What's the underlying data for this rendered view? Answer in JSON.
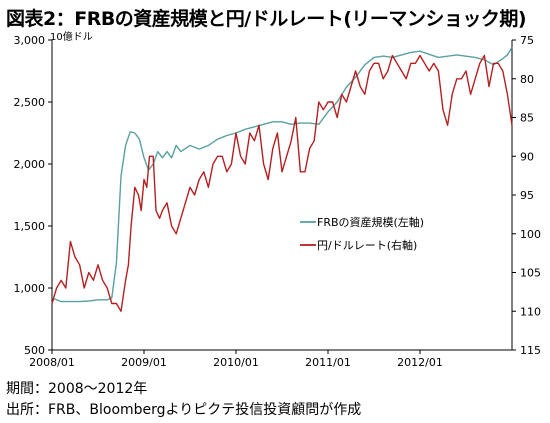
{
  "title": "図表2：FRBの資産規模と円/ドルレート(リーマンショック期)",
  "notes": [
    "期間：2008～2012年",
    "出所：FRB、Bloombergよりピクテ投信投資顧問が作成"
  ],
  "chart_data": {
    "type": "line",
    "left_unit": "10億ドル",
    "x_ticks": [
      "2008/01",
      "2009/01",
      "2010/01",
      "2011/01",
      "2012/01"
    ],
    "x_range": [
      2008.0,
      2013.0
    ],
    "y_left": {
      "ticks": [
        "500",
        "1,000",
        "1,500",
        "2,000",
        "2,500",
        "3,000"
      ],
      "range": [
        500,
        3000
      ]
    },
    "y_right": {
      "ticks": [
        "75",
        "80",
        "85",
        "90",
        "95",
        "100",
        "105",
        "110",
        "115"
      ],
      "range": [
        75,
        115
      ],
      "inverted": true
    },
    "grid": false,
    "legend_position": "center-right",
    "series": [
      {
        "name": "FRBの資産規模(左軸)",
        "axis": "left",
        "color": "#5aa0a0",
        "x": [
          2008.0,
          2008.1,
          2008.2,
          2008.3,
          2008.4,
          2008.5,
          2008.6,
          2008.65,
          2008.7,
          2008.75,
          2008.8,
          2008.85,
          2008.9,
          2008.95,
          2009.0,
          2009.05,
          2009.1,
          2009.15,
          2009.2,
          2009.25,
          2009.3,
          2009.35,
          2009.4,
          2009.5,
          2009.6,
          2009.7,
          2009.8,
          2009.9,
          2010.0,
          2010.1,
          2010.2,
          2010.3,
          2010.4,
          2010.5,
          2010.6,
          2010.7,
          2010.8,
          2010.9,
          2011.0,
          2011.1,
          2011.2,
          2011.3,
          2011.4,
          2011.5,
          2011.6,
          2011.7,
          2011.8,
          2011.9,
          2012.0,
          2012.2,
          2012.4,
          2012.6,
          2012.7,
          2012.8,
          2012.9,
          2012.95,
          2013.0
        ],
        "values": [
          920,
          890,
          890,
          890,
          895,
          905,
          905,
          920,
          1200,
          1900,
          2150,
          2260,
          2250,
          2200,
          2050,
          1950,
          2000,
          2100,
          2050,
          2100,
          2050,
          2150,
          2100,
          2150,
          2120,
          2150,
          2200,
          2230,
          2250,
          2280,
          2300,
          2320,
          2340,
          2340,
          2320,
          2330,
          2330,
          2320,
          2420,
          2500,
          2620,
          2700,
          2800,
          2860,
          2870,
          2860,
          2880,
          2900,
          2910,
          2860,
          2880,
          2860,
          2840,
          2800,
          2850,
          2880,
          2940
        ]
      },
      {
        "name": "円/ドルレート(右軸)",
        "axis": "right",
        "color": "#b42020",
        "x": [
          2008.0,
          2008.05,
          2008.1,
          2008.15,
          2008.2,
          2008.25,
          2008.3,
          2008.35,
          2008.4,
          2008.45,
          2008.5,
          2008.55,
          2008.6,
          2008.65,
          2008.7,
          2008.75,
          2008.8,
          2008.83,
          2008.86,
          2008.9,
          2008.94,
          2008.97,
          2009.0,
          2009.03,
          2009.06,
          2009.1,
          2009.13,
          2009.17,
          2009.2,
          2009.25,
          2009.3,
          2009.35,
          2009.4,
          2009.45,
          2009.5,
          2009.55,
          2009.6,
          2009.65,
          2009.7,
          2009.75,
          2009.8,
          2009.85,
          2009.9,
          2009.95,
          2010.0,
          2010.05,
          2010.1,
          2010.15,
          2010.2,
          2010.25,
          2010.3,
          2010.35,
          2010.4,
          2010.45,
          2010.5,
          2010.55,
          2010.6,
          2010.65,
          2010.7,
          2010.75,
          2010.8,
          2010.85,
          2010.9,
          2010.95,
          2011.0,
          2011.05,
          2011.1,
          2011.15,
          2011.2,
          2011.25,
          2011.3,
          2011.35,
          2011.4,
          2011.45,
          2011.5,
          2011.55,
          2011.6,
          2011.65,
          2011.7,
          2011.75,
          2011.8,
          2011.85,
          2011.9,
          2011.95,
          2012.0,
          2012.05,
          2012.1,
          2012.15,
          2012.2,
          2012.25,
          2012.3,
          2012.35,
          2012.4,
          2012.45,
          2012.5,
          2012.55,
          2012.6,
          2012.65,
          2012.7,
          2012.75,
          2012.8,
          2012.85,
          2012.9,
          2012.95,
          2013.0
        ],
        "values": [
          109,
          107,
          106,
          107,
          101,
          103,
          104,
          107,
          105,
          106,
          104,
          106,
          107,
          109,
          109,
          110,
          106,
          104,
          99,
          94,
          95,
          97,
          93,
          94,
          90,
          90,
          97,
          98,
          97,
          96,
          99,
          100,
          98,
          96,
          94,
          95,
          93,
          92,
          94,
          91,
          90,
          90,
          92,
          91,
          87,
          90,
          91,
          87,
          88,
          86,
          91,
          93,
          89,
          87,
          92,
          90,
          88,
          85,
          92,
          92,
          89,
          88,
          83,
          84,
          83,
          83,
          85,
          82,
          83,
          81,
          79,
          81,
          82,
          79,
          78,
          78,
          80,
          79,
          77,
          78,
          79,
          80,
          78,
          78,
          77,
          78,
          79,
          78,
          79,
          84,
          86,
          82,
          80,
          80,
          79,
          82,
          80,
          78,
          77,
          81,
          78,
          78,
          79,
          82,
          86
        ]
      }
    ]
  }
}
